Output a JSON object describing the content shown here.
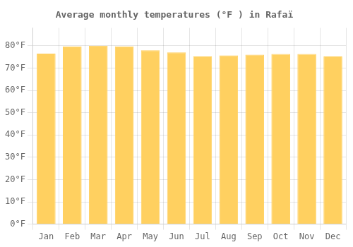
{
  "chart_data": {
    "type": "bar",
    "title": "Average monthly temperatures (°F ) in Rafaï",
    "categories": [
      "Jan",
      "Feb",
      "Mar",
      "Apr",
      "May",
      "Jun",
      "Jul",
      "Aug",
      "Sep",
      "Oct",
      "Nov",
      "Dec"
    ],
    "values": [
      76.5,
      79.7,
      80.0,
      79.7,
      78.0,
      77.0,
      75.2,
      75.7,
      76.0,
      76.3,
      76.3,
      75.2
    ],
    "color": "#FFD060",
    "ylim": [
      0,
      88
    ],
    "yticks": [
      {
        "value": 0,
        "label": "0°F"
      },
      {
        "value": 10,
        "label": "10°F"
      },
      {
        "value": 20,
        "label": "20°F"
      },
      {
        "value": 30,
        "label": "30°F"
      },
      {
        "value": 40,
        "label": "40°F"
      },
      {
        "value": 50,
        "label": "50°F"
      },
      {
        "value": 60,
        "label": "60°F"
      },
      {
        "value": 70,
        "label": "70°F"
      },
      {
        "value": 80,
        "label": "80°F"
      }
    ],
    "grid": true
  }
}
